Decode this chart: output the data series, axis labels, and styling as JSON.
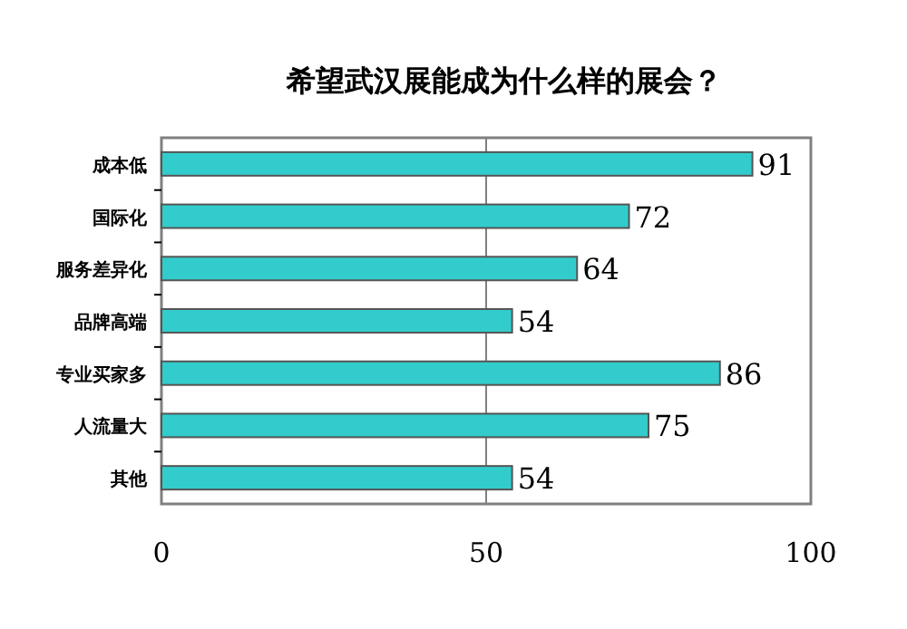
{
  "chart_data": {
    "type": "bar",
    "orientation": "horizontal",
    "title": "希望武汉展能成为什么样的展会？",
    "categories": [
      "成本低",
      "国际化",
      "服务差异化",
      "品牌高端",
      "专业买家多",
      "人流量大",
      "其他"
    ],
    "values": [
      91,
      72,
      64,
      54,
      86,
      75,
      54
    ],
    "color": "#33cccc",
    "data_labels": true,
    "xlim": [
      0,
      100
    ],
    "xticks": [
      0,
      50,
      100
    ],
    "grid": "x"
  }
}
